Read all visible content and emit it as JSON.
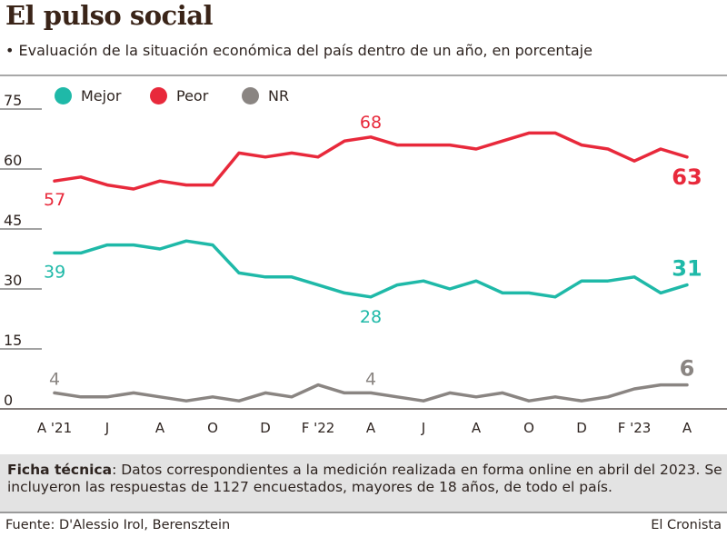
{
  "header": {
    "title": "El pulso social",
    "subtitle": "• Evaluación de la situación económica del país dentro de un año, en porcentaje"
  },
  "colors": {
    "mejor": "#1fb9a8",
    "peor": "#e8293b",
    "nr": "#8a8582",
    "grid": "#6b6b6b",
    "text": "#2e2420"
  },
  "chart_data": {
    "type": "line",
    "title": "El pulso social",
    "subtitle": "Evaluación de la situación económica del país dentro de un año, en porcentaje",
    "xlabel": "",
    "ylabel": "",
    "ylim": [
      0,
      75
    ],
    "yticks": [
      0,
      15,
      30,
      45,
      60,
      75
    ],
    "grid": true,
    "legend_position": "top-left",
    "x": [
      "Abr 2021",
      "May 2021",
      "Jun 2021",
      "Jul 2021",
      "Ago 2021",
      "Sep 2021",
      "Oct 2021",
      "Nov 2021",
      "Dic 2021",
      "Ene 2022",
      "Feb 2022",
      "Mar 2022",
      "Abr 2022",
      "May 2022",
      "Jun 2022",
      "Jul 2022",
      "Ago 2022",
      "Sep 2022",
      "Oct 2022",
      "Nov 2022",
      "Dic 2022",
      "Ene 2023",
      "Feb 2023",
      "Mar 2023",
      "Abr 2023"
    ],
    "xtick_labels": [
      {
        "index": 0,
        "label": "A '21"
      },
      {
        "index": 2,
        "label": "J"
      },
      {
        "index": 4,
        "label": "A"
      },
      {
        "index": 6,
        "label": "O"
      },
      {
        "index": 8,
        "label": "D"
      },
      {
        "index": 10,
        "label": "F '22"
      },
      {
        "index": 12,
        "label": "A"
      },
      {
        "index": 14,
        "label": "J"
      },
      {
        "index": 16,
        "label": "A"
      },
      {
        "index": 18,
        "label": "O"
      },
      {
        "index": 20,
        "label": "D"
      },
      {
        "index": 22,
        "label": "F '23"
      },
      {
        "index": 24,
        "label": "A"
      }
    ],
    "series": [
      {
        "key": "mejor",
        "name": "Mejor",
        "values": [
          39,
          39,
          41,
          41,
          40,
          42,
          41,
          34,
          33,
          33,
          31,
          29,
          28,
          31,
          32,
          30,
          32,
          29,
          29,
          28,
          32,
          32,
          33,
          29,
          31
        ],
        "annotations": [
          {
            "index": 0,
            "label": "39"
          },
          {
            "index": 12,
            "label": "28"
          },
          {
            "index": 24,
            "label": "31"
          }
        ]
      },
      {
        "key": "peor",
        "name": "Peor",
        "values": [
          57,
          58,
          56,
          55,
          57,
          56,
          56,
          64,
          63,
          64,
          63,
          67,
          68,
          66,
          66,
          66,
          65,
          67,
          69,
          69,
          66,
          65,
          62,
          65,
          63
        ],
        "annotations": [
          {
            "index": 0,
            "label": "57"
          },
          {
            "index": 12,
            "label": "68"
          },
          {
            "index": 24,
            "label": "63"
          }
        ]
      },
      {
        "key": "nr",
        "name": "NR",
        "values": [
          4,
          3,
          3,
          4,
          3,
          2,
          3,
          2,
          4,
          3,
          6,
          4,
          4,
          3,
          2,
          4,
          3,
          4,
          2,
          3,
          2,
          3,
          5,
          6,
          6
        ],
        "annotations": [
          {
            "index": 0,
            "label": "4"
          },
          {
            "index": 12,
            "label": "4"
          },
          {
            "index": 24,
            "label": "6"
          }
        ]
      }
    ]
  },
  "footer": {
    "note_label": "Ficha técnica",
    "note_text": ": Datos correspondientes a la medición realizada en forma online en abril del 2023. Se incluyeron las respuestas de 1127 encuestados, mayores de 18 años, de todo el país.",
    "source": "Fuente: D'Alessio Irol, Berensztein",
    "brand": "El Cronista"
  }
}
